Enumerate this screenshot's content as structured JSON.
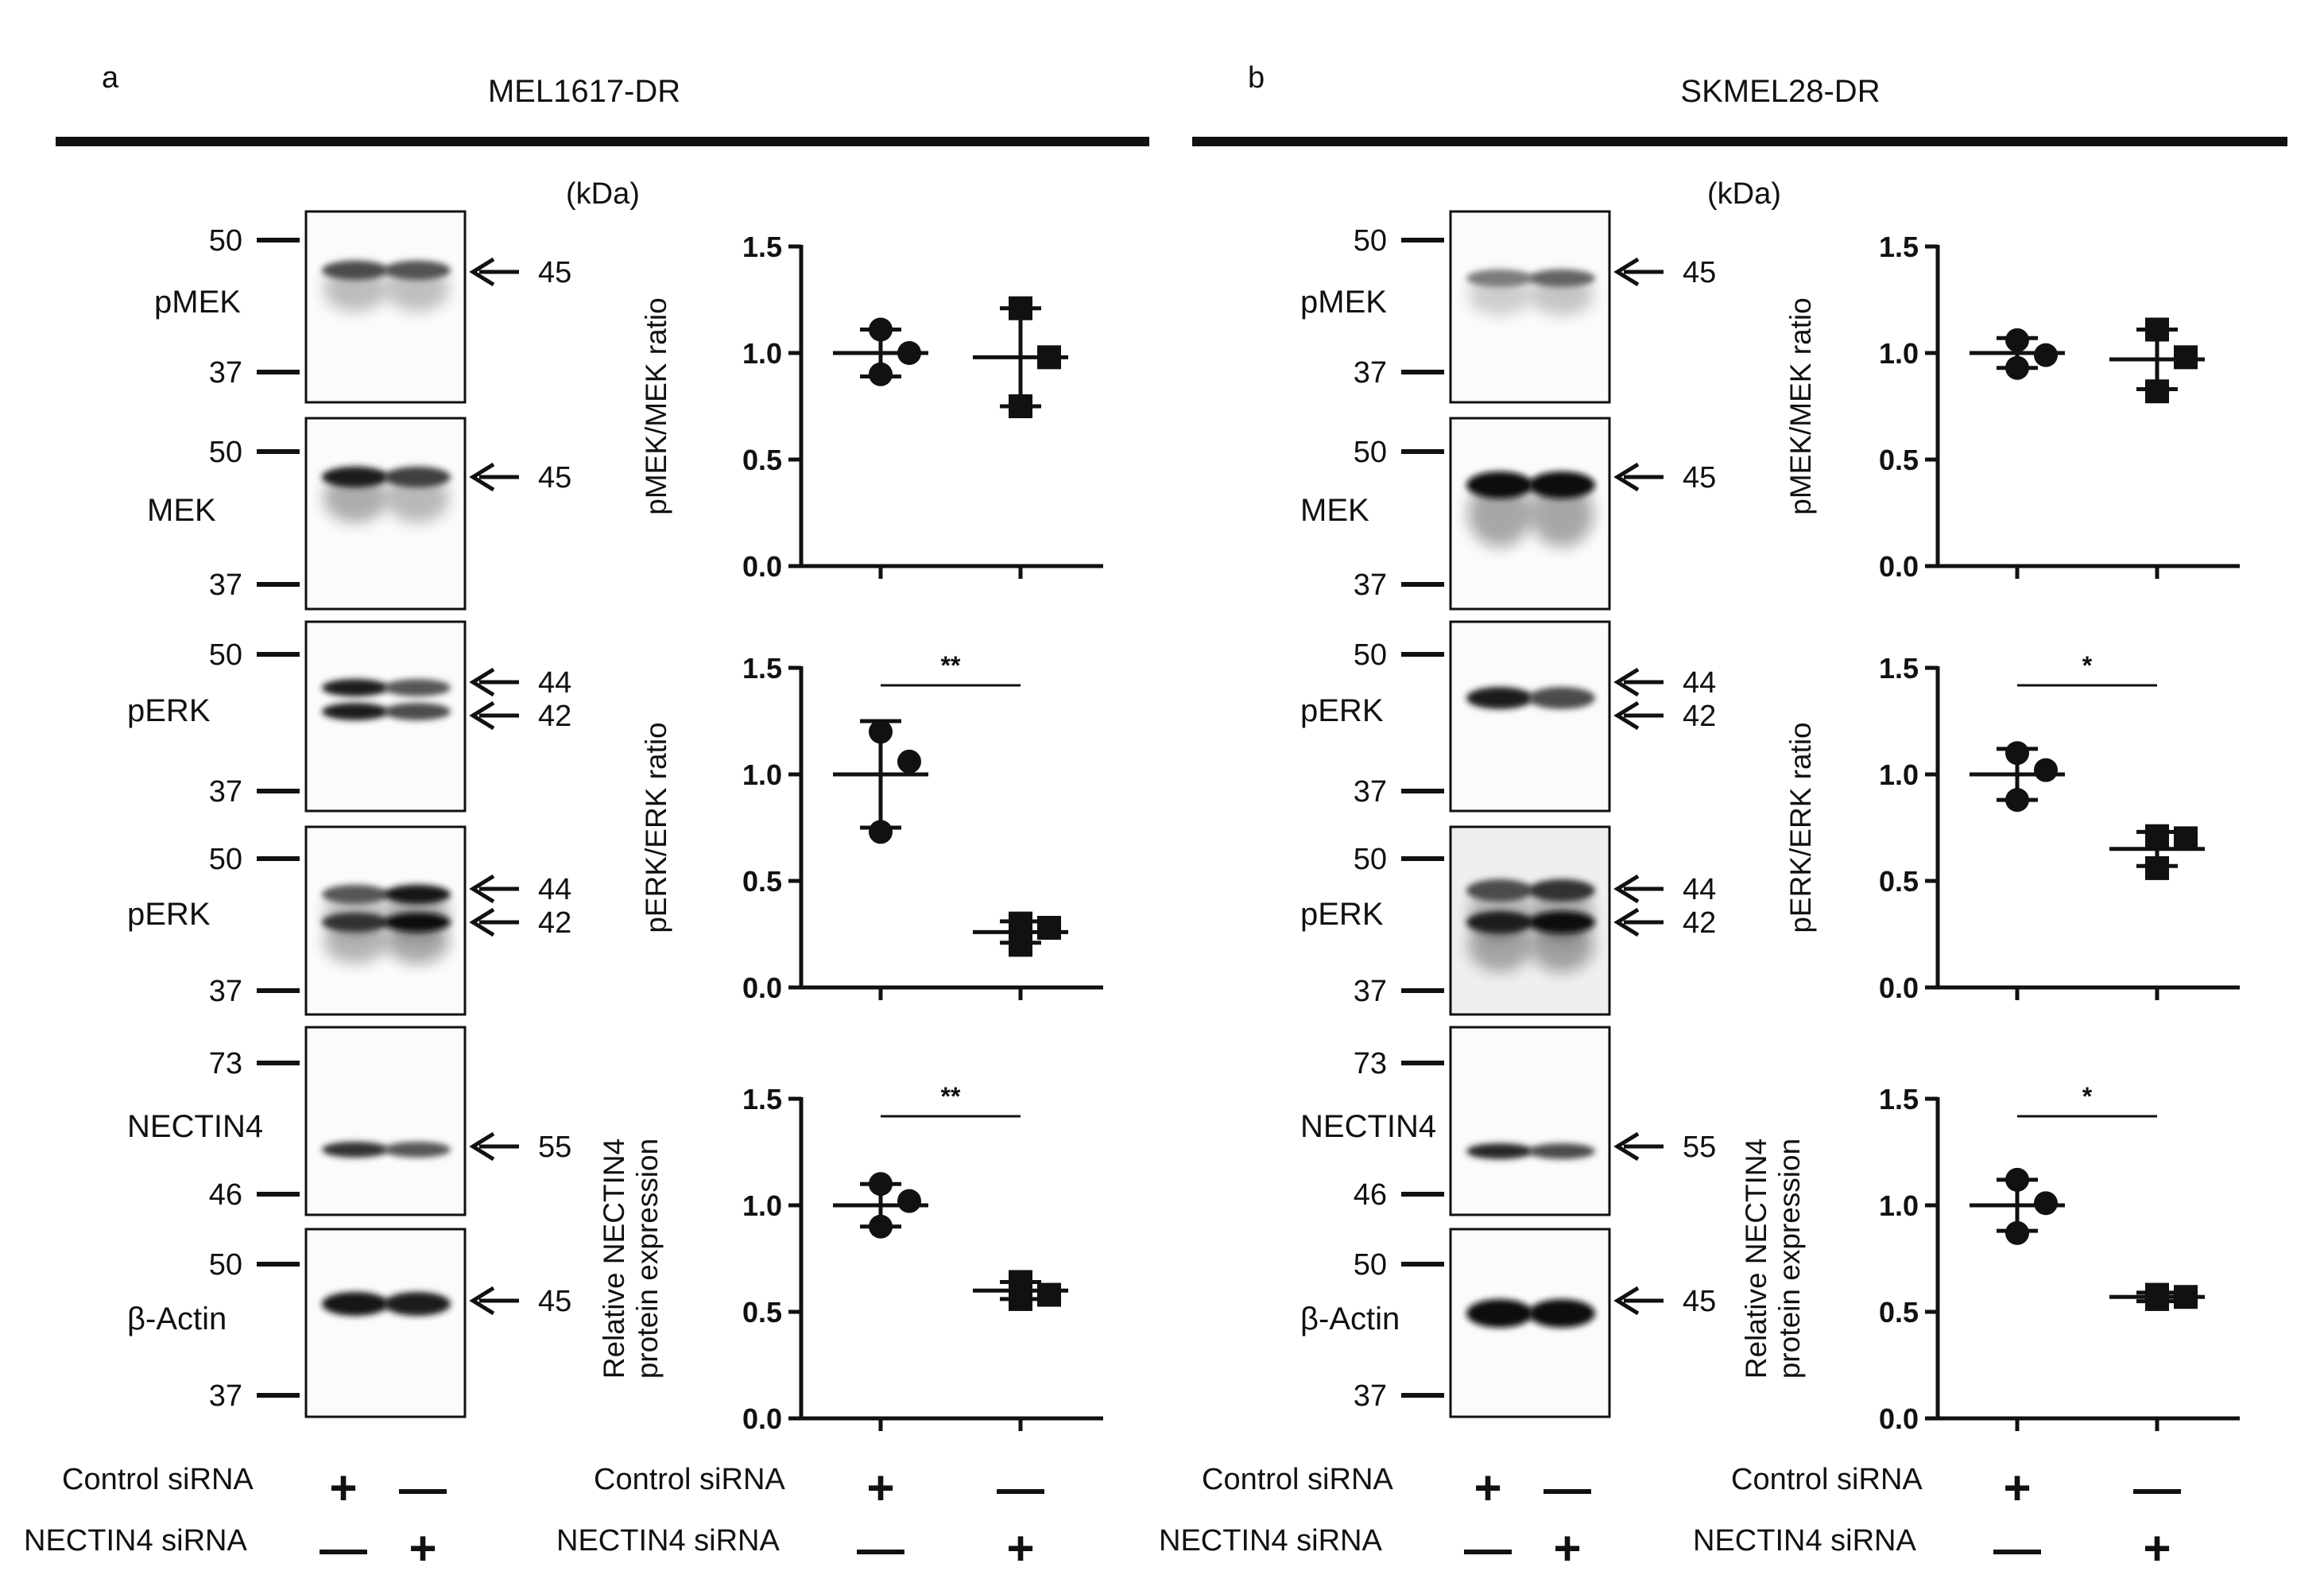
{
  "figure": {
    "panels": [
      {
        "label": "a",
        "title": "MEL1617-DR",
        "kda": "(kDa)",
        "blots": [
          {
            "protein": "pMEK",
            "markers": [
              "50",
              "37"
            ],
            "arrows": [
              "45"
            ]
          },
          {
            "protein": "MEK",
            "markers": [
              "50",
              "37"
            ],
            "arrows": [
              "45"
            ]
          },
          {
            "protein": "pERK",
            "markers": [
              "50",
              "37"
            ],
            "arrows": [
              "44",
              "42"
            ]
          },
          {
            "protein": "pERK",
            "markers": [
              "50",
              "37"
            ],
            "arrows": [
              "44",
              "42"
            ]
          },
          {
            "protein": "NECTIN4",
            "markers": [
              "73",
              "46"
            ],
            "arrows": [
              "55"
            ]
          },
          {
            "protein": "β-Actin",
            "markers": [
              "50",
              "37"
            ],
            "arrows": [
              "45"
            ]
          }
        ],
        "conditions": {
          "row1_label": "Control siRNA",
          "row1_signs": [
            "+",
            "—"
          ],
          "row2_label": "NECTIN4 siRNA",
          "row2_signs": [
            "—",
            "+"
          ]
        }
      },
      {
        "label": "b",
        "title": "SKMEL28-DR",
        "kda": "(kDa)",
        "blots": [
          {
            "protein": "pMEK",
            "markers": [
              "50",
              "37"
            ],
            "arrows": [
              "45"
            ]
          },
          {
            "protein": "MEK",
            "markers": [
              "50",
              "37"
            ],
            "arrows": [
              "45"
            ]
          },
          {
            "protein": "pERK",
            "markers": [
              "50",
              "37"
            ],
            "arrows": [
              "44",
              "42"
            ]
          },
          {
            "protein": "pERK",
            "markers": [
              "50",
              "37"
            ],
            "arrows": [
              "44",
              "42"
            ]
          },
          {
            "protein": "NECTIN4",
            "markers": [
              "73",
              "46"
            ],
            "arrows": [
              "55"
            ]
          },
          {
            "protein": "β-Actin",
            "markers": [
              "50",
              "37"
            ],
            "arrows": [
              "45"
            ]
          }
        ],
        "conditions": {
          "row1_label": "Control siRNA",
          "row1_signs": [
            "+",
            "—"
          ],
          "row2_label": "NECTIN4 siRNA",
          "row2_signs": [
            "—",
            "+"
          ]
        }
      }
    ]
  },
  "chart_data": [
    {
      "type": "scatter",
      "panel": "a",
      "ylabel": [
        "pMEK/MEK ratio"
      ],
      "ylim": [
        0,
        1.5
      ],
      "yticks": [
        "0.0",
        "0.5",
        "1.0",
        "1.5"
      ],
      "significance": "",
      "groups": [
        {
          "name": "Control siRNA",
          "marker": "circle",
          "values": [
            1.11,
            0.9,
            1.0
          ],
          "mean": 1.0,
          "sd": 0.11
        },
        {
          "name": "NECTIN4 siRNA",
          "marker": "square",
          "values": [
            1.21,
            0.75,
            0.98
          ],
          "mean": 0.98,
          "sd": 0.23
        }
      ]
    },
    {
      "type": "scatter",
      "panel": "a",
      "ylabel": [
        "pERK/ERK ratio"
      ],
      "ylim": [
        0,
        1.5
      ],
      "yticks": [
        "0.0",
        "0.5",
        "1.0",
        "1.5"
      ],
      "significance": "**",
      "groups": [
        {
          "name": "Control siRNA",
          "marker": "circle",
          "values": [
            1.2,
            0.73,
            1.06
          ],
          "mean": 1.0,
          "sd": 0.25
        },
        {
          "name": "NECTIN4 siRNA",
          "marker": "square",
          "values": [
            0.3,
            0.2,
            0.28
          ],
          "mean": 0.26,
          "sd": 0.05
        }
      ]
    },
    {
      "type": "scatter",
      "panel": "a",
      "ylabel": [
        "Relative NECTIN4",
        "protein expression"
      ],
      "ylim": [
        0,
        1.5
      ],
      "yticks": [
        "0.0",
        "0.5",
        "1.0",
        "1.5"
      ],
      "significance": "**",
      "groups": [
        {
          "name": "Control siRNA",
          "marker": "circle",
          "values": [
            1.1,
            0.9,
            1.02
          ],
          "mean": 1.0,
          "sd": 0.1
        },
        {
          "name": "NECTIN4 siRNA",
          "marker": "square",
          "values": [
            0.64,
            0.56,
            0.58
          ],
          "mean": 0.6,
          "sd": 0.04
        }
      ]
    },
    {
      "type": "scatter",
      "panel": "b",
      "ylabel": [
        "pMEK/MEK ratio"
      ],
      "ylim": [
        0,
        1.5
      ],
      "yticks": [
        "0.0",
        "0.5",
        "1.0",
        "1.5"
      ],
      "significance": "",
      "groups": [
        {
          "name": "Control siRNA",
          "marker": "circle",
          "values": [
            1.06,
            0.93,
            0.99
          ],
          "mean": 1.0,
          "sd": 0.07
        },
        {
          "name": "NECTIN4 siRNA",
          "marker": "square",
          "values": [
            1.11,
            0.82,
            0.98
          ],
          "mean": 0.97,
          "sd": 0.14
        }
      ]
    },
    {
      "type": "scatter",
      "panel": "b",
      "ylabel": [
        "pERK/ERK ratio"
      ],
      "ylim": [
        0,
        1.5
      ],
      "yticks": [
        "0.0",
        "0.5",
        "1.0",
        "1.5"
      ],
      "significance": "*",
      "groups": [
        {
          "name": "Control siRNA",
          "marker": "circle",
          "values": [
            1.1,
            0.88,
            1.02
          ],
          "mean": 1.0,
          "sd": 0.12
        },
        {
          "name": "NECTIN4 siRNA",
          "marker": "square",
          "values": [
            0.71,
            0.56,
            0.7
          ],
          "mean": 0.65,
          "sd": 0.08
        }
      ]
    },
    {
      "type": "scatter",
      "panel": "b",
      "ylabel": [
        "Relative NECTIN4",
        "protein expression"
      ],
      "ylim": [
        0,
        1.5
      ],
      "yticks": [
        "0.0",
        "0.5",
        "1.0",
        "1.5"
      ],
      "significance": "*",
      "groups": [
        {
          "name": "Control siRNA",
          "marker": "circle",
          "values": [
            1.12,
            0.87,
            1.01
          ],
          "mean": 1.0,
          "sd": 0.12
        },
        {
          "name": "NECTIN4 siRNA",
          "marker": "square",
          "values": [
            0.58,
            0.56,
            0.57
          ],
          "mean": 0.57,
          "sd": 0.02
        }
      ]
    }
  ]
}
